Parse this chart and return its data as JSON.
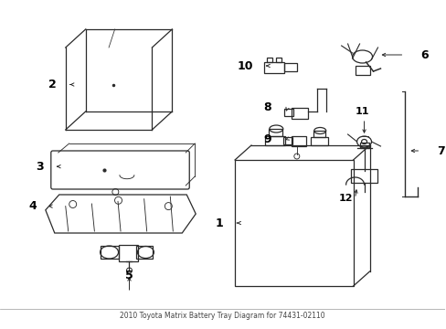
{
  "background_color": "#ffffff",
  "line_color": "#2a2a2a",
  "label_color": "#000000",
  "title": "2010 Toyota Matrix Battery Tray Diagram for 74431-02110",
  "figsize": [
    4.89,
    3.6
  ],
  "dpi": 100,
  "xlim": [
    0,
    489
  ],
  "ylim": [
    0,
    360
  ]
}
